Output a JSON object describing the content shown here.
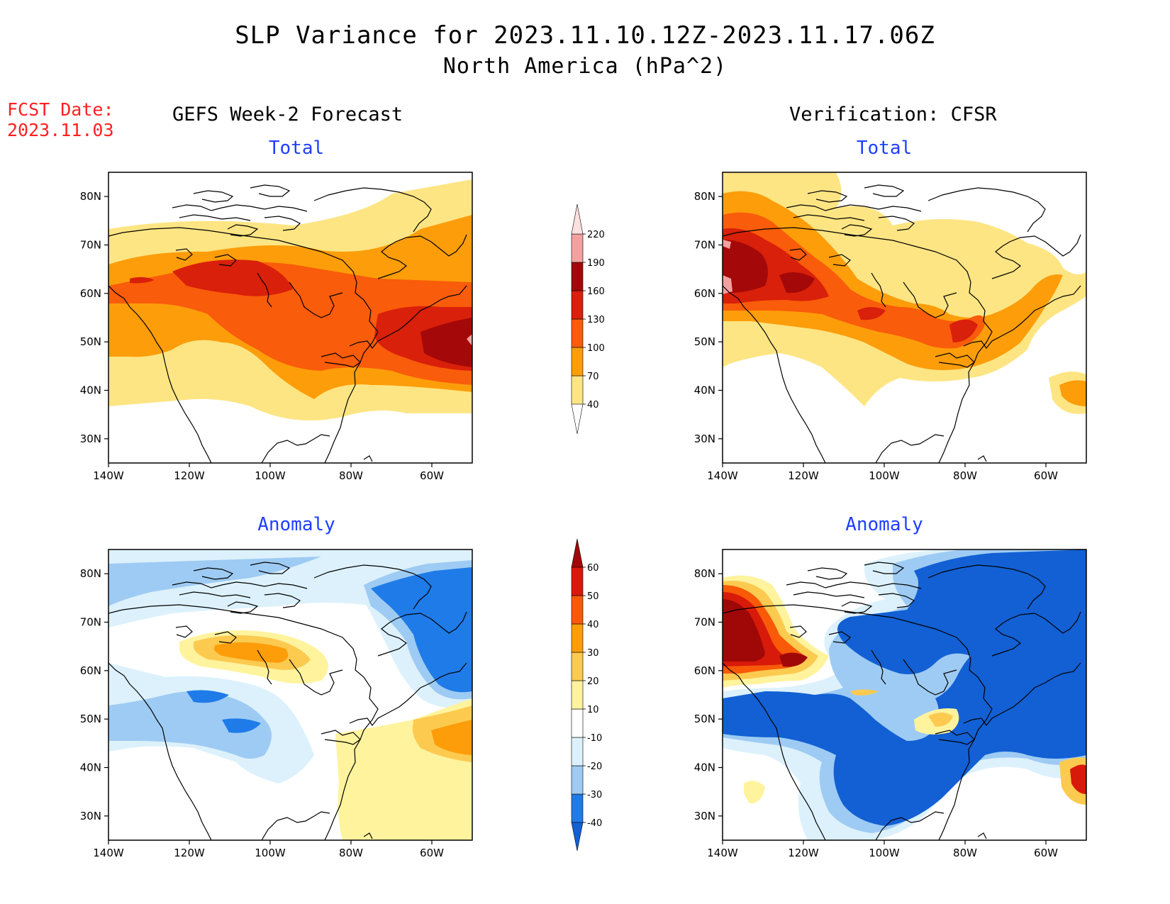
{
  "title": {
    "line1": "SLP Variance for 2023.11.10.12Z-2023.11.17.06Z",
    "line2": "North America (hPa^2)"
  },
  "fcst": {
    "line1": "FCST Date:",
    "line2": "2023.11.03"
  },
  "columns": {
    "left": "GEFS Week-2 Forecast",
    "right": "Verification: CFSR"
  },
  "panels": {
    "total": "Total",
    "anomaly": "Anomaly"
  },
  "axes": {
    "lat_labels": [
      "80N",
      "70N",
      "60N",
      "50N",
      "40N",
      "30N"
    ],
    "lat_values": [
      80,
      70,
      60,
      50,
      40,
      30
    ],
    "lon_labels": [
      "140W",
      "120W",
      "100W",
      "80W",
      "60W"
    ],
    "lon_values": [
      -140,
      -120,
      -100,
      -80,
      -60
    ],
    "lon_range": [
      -140,
      -50
    ],
    "lat_range": [
      25,
      85
    ]
  },
  "colorbars": {
    "total": {
      "levels": [
        "40",
        "70",
        "100",
        "130",
        "160",
        "190",
        "220"
      ],
      "colors": [
        "#fee583",
        "#fd9d0a",
        "#f95c0a",
        "#d9200a",
        "#a50808",
        "#f4a0a0",
        "#fde0e0"
      ]
    },
    "anomaly": {
      "levels": [
        "-40",
        "-30",
        "-20",
        "-10",
        "10",
        "20",
        "30",
        "40",
        "50",
        "60"
      ],
      "colors": [
        "#1260d4",
        "#1f7be8",
        "#9ecbf3",
        "#dcf1fc",
        "#ffffff",
        "#fff39e",
        "#fdca50",
        "#fd9d0a",
        "#f85a08",
        "#d81a0a",
        "#a00808"
      ]
    }
  },
  "colors": {
    "title_red": "#ff2020",
    "panel_title_blue": "#1f3fff"
  }
}
